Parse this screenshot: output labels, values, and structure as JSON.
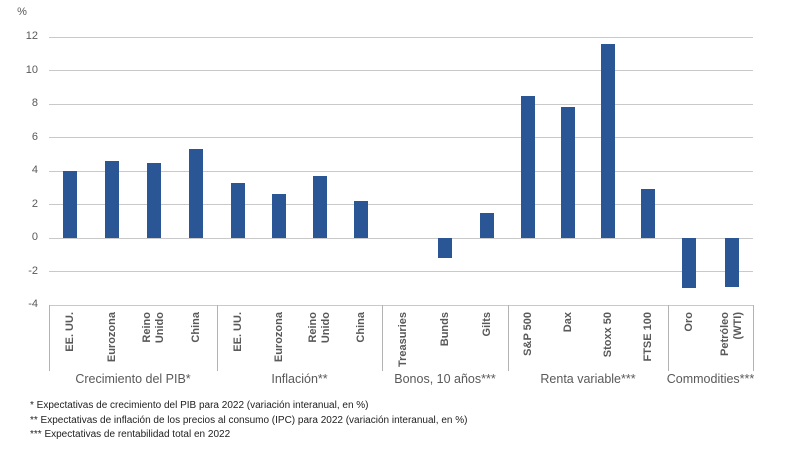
{
  "chart_data": {
    "type": "bar",
    "title": "",
    "unit_label": "%",
    "xlabel": "",
    "ylabel": "%",
    "ylim": [
      -4,
      12
    ],
    "yticks": [
      12,
      10,
      8,
      6,
      4,
      2,
      0,
      -2,
      -4
    ],
    "grid": true,
    "legend": false,
    "bar_color": "#2b5696",
    "gridline_color": "#c9c9c9",
    "axis_text_color": "#595959",
    "groups": [
      {
        "label": "Crecimiento del PIB*",
        "categories": [
          "EE. UU.",
          "Eurozona",
          "Reino Unido",
          "China"
        ],
        "values": [
          4.0,
          4.6,
          4.5,
          5.3
        ]
      },
      {
        "label": "Inflación**",
        "categories": [
          "EE. UU.",
          "Eurozona",
          "Reino Unido",
          "China"
        ],
        "values": [
          3.3,
          2.6,
          3.7,
          2.2
        ]
      },
      {
        "label": "Bonos, 10 años***",
        "categories": [
          "Treasuries",
          "Bunds",
          "Gilts"
        ],
        "values": [
          0.0,
          -1.2,
          1.5
        ]
      },
      {
        "label": "Renta variable***",
        "categories": [
          "S&P 500",
          "Dax",
          "Stoxx 50",
          "FTSE 100"
        ],
        "values": [
          8.5,
          7.8,
          11.6,
          2.9
        ]
      },
      {
        "label": "Commodities***",
        "categories": [
          "Oro",
          "Petróleo (WTI)"
        ],
        "values": [
          -3.0,
          -2.9
        ]
      }
    ],
    "wrapped_labels": {
      "Reino Unido": [
        "Reino",
        "Unido"
      ],
      "Petróleo (WTI)": [
        "Petróleo",
        "(WTI)"
      ]
    }
  },
  "footnotes": [
    "* Expectativas de crecimiento del PIB para 2022 (variación interanual, en %)",
    "** Expectativas de inflación de los precios al consumo (IPC) para 2022 (variación interanual, en %)",
    "*** Expectativas de rentabilidad total en 2022"
  ]
}
